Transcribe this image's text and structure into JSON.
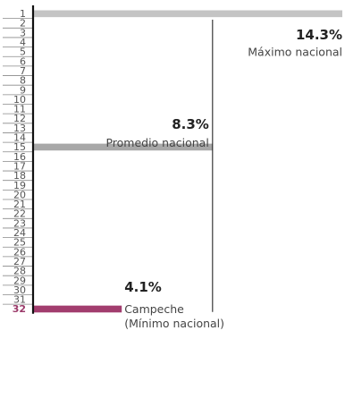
{
  "chart_data": {
    "type": "bar",
    "orientation": "horizontal",
    "xlim": [
      0,
      14.3
    ],
    "categories": [
      "1",
      "2",
      "3",
      "4",
      "5",
      "6",
      "7",
      "8",
      "9",
      "10",
      "11",
      "12",
      "13",
      "14",
      "15",
      "16",
      "17",
      "18",
      "19",
      "20",
      "21",
      "22",
      "23",
      "24",
      "25",
      "26",
      "27",
      "28",
      "29",
      "30",
      "31",
      "32"
    ],
    "bars": [
      {
        "rank": "1",
        "value": 14.3,
        "color": "#c4c4c4"
      },
      {
        "rank": "15",
        "value": 8.3,
        "color": "#a8a8a8"
      },
      {
        "rank": "32",
        "value": 4.1,
        "color": "#a23d6e"
      }
    ],
    "highlight_rank": "32",
    "annotations": {
      "max": {
        "value_label": "14.3%",
        "label": "Máximo nacional"
      },
      "avg": {
        "value": 8.3,
        "value_label": "8.3%",
        "label": "Promedio nacional"
      },
      "min": {
        "value_label": "4.1%",
        "label_line1": "Campeche",
        "label_line2": "(Mínimo nacional)"
      }
    },
    "colors": {
      "axis": "#111111",
      "tick_text": "#555555",
      "highlight_text": "#9b3a6a",
      "reference_line": "#111111"
    }
  }
}
